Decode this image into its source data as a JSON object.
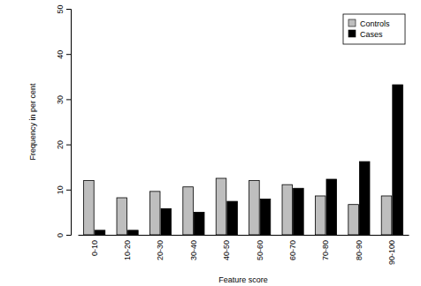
{
  "chart_data": {
    "type": "bar",
    "x_label": "Feature score",
    "y_label": "Frequency in per cent",
    "categories": [
      "0-10",
      "10-20",
      "20-30",
      "30-40",
      "40-50",
      "50-60",
      "60-70",
      "70-80",
      "80-90",
      "90-100"
    ],
    "series": [
      {
        "name": "Controls",
        "color": "#bebebe",
        "values": [
          12,
          8.2,
          9.6,
          10.6,
          12.5,
          12,
          11.1,
          8.6,
          6.7,
          8.6
        ]
      },
      {
        "name": "Cases",
        "color": "#000000",
        "values": [
          1,
          1,
          5.8,
          5,
          7.4,
          7.9,
          10.3,
          12.3,
          16.2,
          33.2
        ]
      }
    ],
    "ylim": [
      0,
      50
    ],
    "yticks": [
      0,
      10,
      20,
      30,
      40,
      50
    ],
    "legend": "top-right"
  }
}
